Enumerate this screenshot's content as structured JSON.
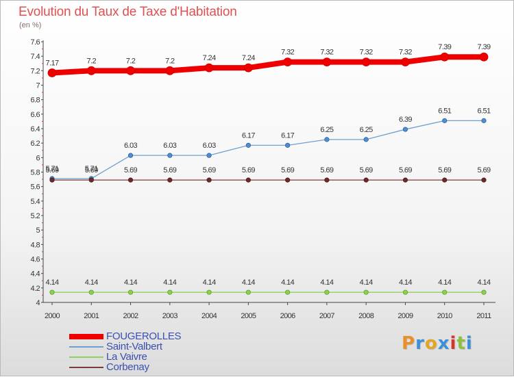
{
  "title": "Evolution du Taux de Taxe d'Habitation",
  "subtitle": "(en %)",
  "logo": {
    "text": "Proxiti",
    "letter_colors": [
      "#e8902a",
      "#3c8fd8",
      "#e2a623",
      "#3c8fd8",
      "#d4352c",
      "#8cc13f",
      "#3c8fd8"
    ]
  },
  "chart_data": {
    "type": "line",
    "title": "Evolution du Taux de Taxe d'Habitation",
    "ylabel": "(en %)",
    "xlabel": "",
    "x": [
      "2000",
      "2001",
      "2002",
      "2003",
      "2004",
      "2005",
      "2006",
      "2007",
      "2008",
      "2009",
      "2010",
      "2011"
    ],
    "ylim": [
      4,
      7.6
    ],
    "yticks": [
      "4",
      "4.2",
      "4.4",
      "4.6",
      "4.8",
      "5",
      "5.2",
      "5.4",
      "5.6",
      "5.8",
      "6",
      "6.2",
      "6.4",
      "6.6",
      "6.8",
      "7",
      "7.2",
      "7.4",
      "7.6"
    ],
    "legend_position": "bottom-left",
    "series": [
      {
        "name": "FOUGEROLLES",
        "color": "#ee0000",
        "values": [
          7.17,
          7.2,
          7.2,
          7.2,
          7.24,
          7.24,
          7.32,
          7.32,
          7.32,
          7.32,
          7.39,
          7.39
        ],
        "labels": [
          "7.17",
          "7.2",
          "7.2",
          "7.2",
          "7.24",
          "7.24",
          "7.32",
          "7.32",
          "7.32",
          "7.32",
          "7.39",
          "7.39"
        ]
      },
      {
        "name": "Saint-Valbert",
        "color": "#6ea0cf",
        "values": [
          5.71,
          5.71,
          6.03,
          6.03,
          6.03,
          6.17,
          6.17,
          6.25,
          6.25,
          6.39,
          6.51,
          6.51
        ],
        "labels": [
          "5.71",
          "5.71",
          "6.03",
          "6.03",
          "6.03",
          "6.17",
          "6.17",
          "6.25",
          "6.25",
          "6.39",
          "6.51",
          "6.51"
        ]
      },
      {
        "name": "La Vaivre",
        "color": "#90d060",
        "values": [
          4.14,
          4.14,
          4.14,
          4.14,
          4.14,
          4.14,
          4.14,
          4.14,
          4.14,
          4.14,
          4.14,
          4.14
        ],
        "labels": [
          "4.14",
          "4.14",
          "4.14",
          "4.14",
          "4.14",
          "4.14",
          "4.14",
          "4.14",
          "4.14",
          "4.14",
          "4.14",
          "4.14"
        ]
      },
      {
        "name": "Corbenay",
        "color": "#7a3a3a",
        "values": [
          5.69,
          5.69,
          5.69,
          5.69,
          5.69,
          5.69,
          5.69,
          5.69,
          5.69,
          5.69,
          5.69,
          5.69
        ],
        "labels": [
          "5.69",
          "5.69",
          "5.69",
          "5.69",
          "5.69",
          "5.69",
          "5.69",
          "5.69",
          "5.69",
          "5.69",
          "5.69",
          "5.69"
        ]
      }
    ]
  }
}
